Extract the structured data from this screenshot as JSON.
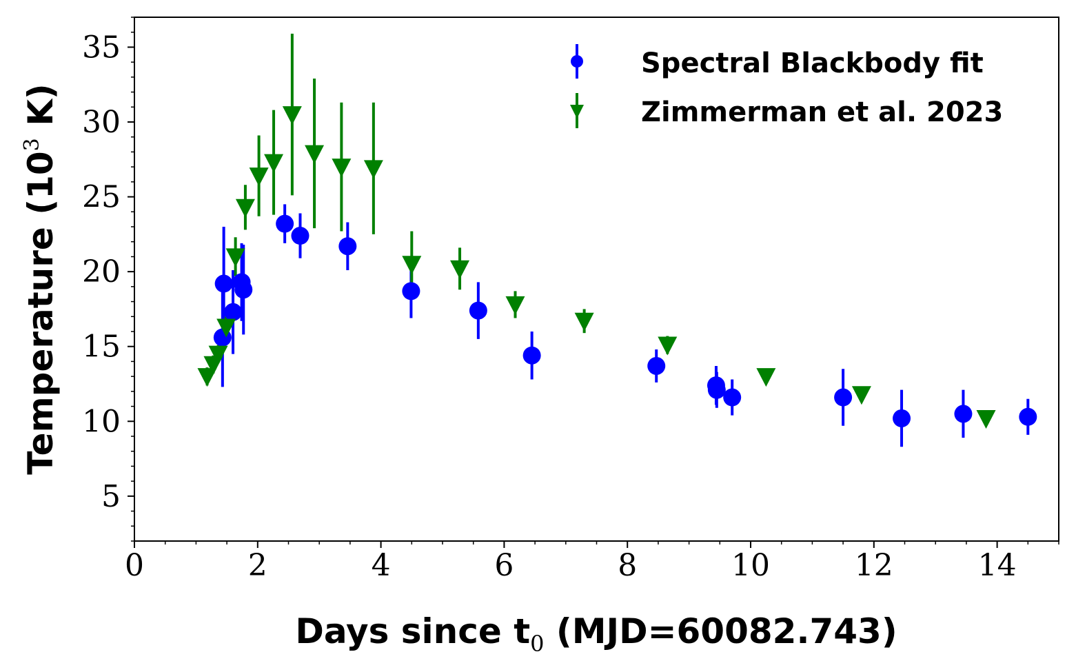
{
  "chart_data": {
    "type": "scatter",
    "title": "",
    "xlabel": "Days since t",
    "xlabel_sub": "0",
    "xlabel_rest": " (MJD=60082.743)",
    "ylabel": "Temperature (10",
    "ylabel_sup": "3",
    "ylabel_rest": " K)",
    "xlim": [
      0,
      15
    ],
    "ylim": [
      2,
      37
    ],
    "xticks": [
      0,
      2,
      4,
      6,
      8,
      10,
      12,
      14
    ],
    "yticks": [
      5,
      10,
      15,
      20,
      25,
      30,
      35
    ],
    "xtick_labels": [
      "0",
      "2",
      "4",
      "6",
      "8",
      "10",
      "12",
      "14"
    ],
    "ytick_labels": [
      "5",
      "10",
      "15",
      "20",
      "25",
      "30",
      "35"
    ],
    "x_minor_step": 0.5,
    "y_minor_step": 1,
    "grid": false,
    "legend_position": "top-right",
    "series": [
      {
        "name": "Spectral Blackbody fit",
        "marker": "circle",
        "color": "#0000ff",
        "points": [
          {
            "x": 1.43,
            "y": 15.6,
            "yerr": 3.3
          },
          {
            "x": 1.45,
            "y": 19.2,
            "yerr": 3.8
          },
          {
            "x": 1.6,
            "y": 17.3,
            "yerr": 2.8
          },
          {
            "x": 1.74,
            "y": 19.3,
            "yerr": 2.6
          },
          {
            "x": 1.77,
            "y": 18.8,
            "yerr": 3.0
          },
          {
            "x": 2.44,
            "y": 23.2,
            "yerr": 1.3
          },
          {
            "x": 2.69,
            "y": 22.4,
            "yerr": 1.5
          },
          {
            "x": 3.46,
            "y": 21.7,
            "yerr": 1.6
          },
          {
            "x": 4.49,
            "y": 18.7,
            "yerr": 1.8
          },
          {
            "x": 5.58,
            "y": 17.4,
            "yerr": 1.9
          },
          {
            "x": 6.45,
            "y": 14.4,
            "yerr": 1.6
          },
          {
            "x": 8.47,
            "y": 13.7,
            "yerr": 1.1
          },
          {
            "x": 9.44,
            "y": 12.4,
            "yerr": 1.3
          },
          {
            "x": 9.45,
            "y": 12.1,
            "yerr": 1.2
          },
          {
            "x": 9.7,
            "y": 11.6,
            "yerr": 1.2
          },
          {
            "x": 11.5,
            "y": 11.6,
            "yerr": 1.9
          },
          {
            "x": 12.45,
            "y": 10.2,
            "yerr": 1.9
          },
          {
            "x": 13.45,
            "y": 10.5,
            "yerr": 1.6
          },
          {
            "x": 14.5,
            "y": 10.3,
            "yerr": 1.2
          }
        ]
      },
      {
        "name": "Zimmerman et al. 2023",
        "marker": "triangle-down",
        "color": "#008000",
        "points": [
          {
            "x": 1.18,
            "y": 13.0,
            "yerr": 0.6
          },
          {
            "x": 1.28,
            "y": 13.8,
            "yerr": 0.6
          },
          {
            "x": 1.36,
            "y": 14.5,
            "yerr": 0.6
          },
          {
            "x": 1.49,
            "y": 16.3,
            "yerr": 0.7
          },
          {
            "x": 1.64,
            "y": 21.0,
            "yerr": 1.3
          },
          {
            "x": 1.8,
            "y": 24.3,
            "yerr": 1.5
          },
          {
            "x": 2.02,
            "y": 26.4,
            "yerr": 2.7
          },
          {
            "x": 2.26,
            "y": 27.3,
            "yerr": 3.5
          },
          {
            "x": 2.56,
            "y": 30.5,
            "yerr": 5.4
          },
          {
            "x": 2.92,
            "y": 27.9,
            "yerr": 5.0
          },
          {
            "x": 3.36,
            "y": 27.0,
            "yerr": 4.3
          },
          {
            "x": 3.88,
            "y": 26.9,
            "yerr": 4.4
          },
          {
            "x": 4.5,
            "y": 20.5,
            "yerr": 2.2
          },
          {
            "x": 5.28,
            "y": 20.2,
            "yerr": 1.4
          },
          {
            "x": 6.18,
            "y": 17.8,
            "yerr": 0.9
          },
          {
            "x": 7.3,
            "y": 16.7,
            "yerr": 0.8
          },
          {
            "x": 8.65,
            "y": 15.1,
            "yerr": 0.6
          },
          {
            "x": 10.25,
            "y": 13.0,
            "yerr": 0.4
          },
          {
            "x": 11.8,
            "y": 11.8,
            "yerr": 0.4
          },
          {
            "x": 13.82,
            "y": 10.2,
            "yerr": 0.4
          }
        ]
      }
    ]
  }
}
